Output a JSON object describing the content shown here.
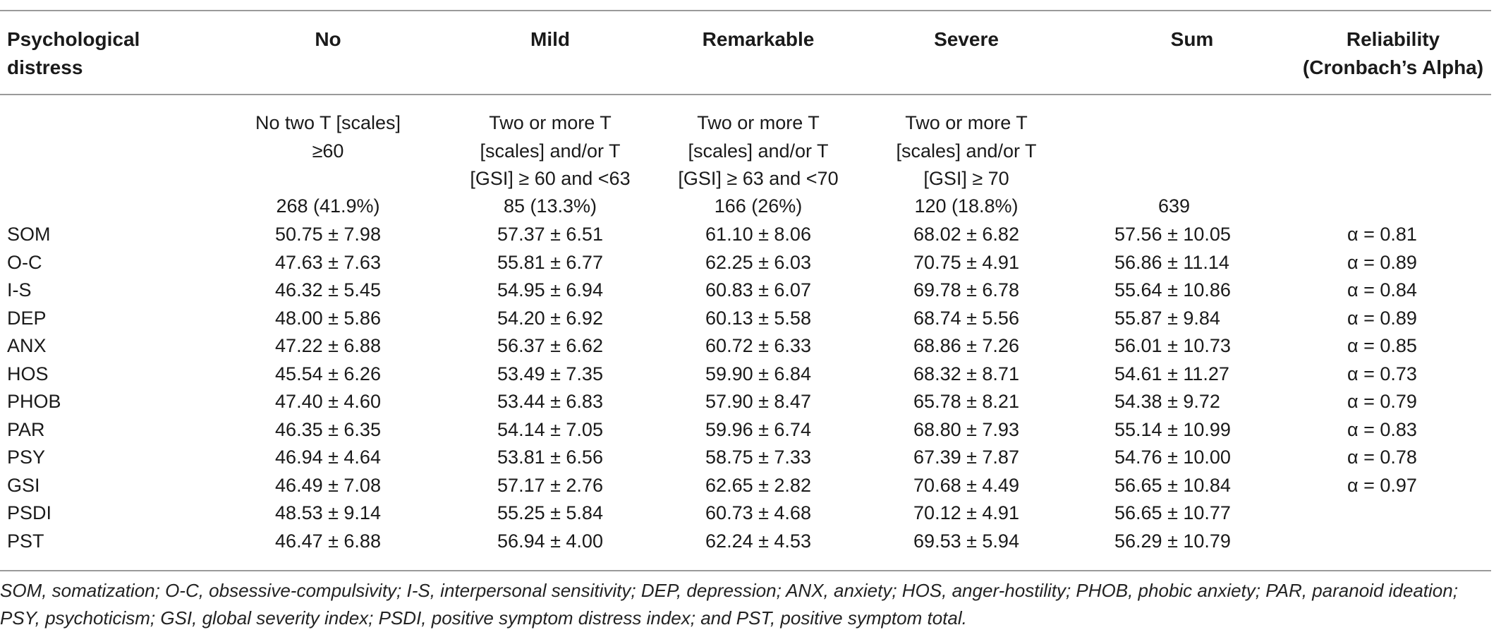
{
  "header": {
    "col0": [
      "Psychological",
      "distress"
    ],
    "col1": "No",
    "col2": "Mild",
    "col3": "Remarkable",
    "col4": "Severe",
    "col5": "Sum",
    "col6": [
      "Reliability",
      "(Cronbach’s Alpha)"
    ]
  },
  "criteria": {
    "no": [
      "No two T [scales]",
      "≥60"
    ],
    "mild": [
      "Two or more T",
      "[scales] and/or T",
      "[GSI] ≥ 60 and <63"
    ],
    "remarkable": [
      "Two or more T",
      "[scales] and/or T",
      "[GSI] ≥ 63 and <70"
    ],
    "severe": [
      "Two or more T",
      "[scales] and/or T",
      "[GSI] ≥ 70"
    ]
  },
  "counts": {
    "no": "268 (41.9%)",
    "mild": "85 (13.3%)",
    "remarkable": "166 (26%)",
    "severe": "120 (18.8%)",
    "sum": "639"
  },
  "rows": [
    {
      "label": "SOM",
      "no": "50.75 ± 7.98",
      "mild": "57.37 ± 6.51",
      "remarkable": "61.10 ± 8.06",
      "severe": "68.02 ± 6.82",
      "sum": "57.56 ± 10.05",
      "alpha": "α = 0.81"
    },
    {
      "label": "O-C",
      "no": "47.63 ± 7.63",
      "mild": "55.81 ± 6.77",
      "remarkable": "62.25 ± 6.03",
      "severe": "70.75 ± 4.91",
      "sum": "56.86 ± 11.14",
      "alpha": "α = 0.89"
    },
    {
      "label": "I-S",
      "no": "46.32 ± 5.45",
      "mild": "54.95 ± 6.94",
      "remarkable": "60.83 ± 6.07",
      "severe": "69.78 ± 6.78",
      "sum": "55.64 ± 10.86",
      "alpha": "α = 0.84"
    },
    {
      "label": "DEP",
      "no": "48.00 ± 5.86",
      "mild": "54.20 ± 6.92",
      "remarkable": "60.13 ± 5.58",
      "severe": "68.74 ± 5.56",
      "sum": "55.87 ± 9.84",
      "alpha": "α = 0.89"
    },
    {
      "label": "ANX",
      "no": "47.22 ± 6.88",
      "mild": "56.37 ± 6.62",
      "remarkable": "60.72 ± 6.33",
      "severe": "68.86 ± 7.26",
      "sum": "56.01 ± 10.73",
      "alpha": "α = 0.85"
    },
    {
      "label": "HOS",
      "no": "45.54 ± 6.26",
      "mild": "53.49 ± 7.35",
      "remarkable": "59.90 ± 6.84",
      "severe": "68.32 ± 8.71",
      "sum": "54.61 ± 11.27",
      "alpha": "α = 0.73"
    },
    {
      "label": "PHOB",
      "no": "47.40 ± 4.60",
      "mild": "53.44 ± 6.83",
      "remarkable": "57.90 ± 8.47",
      "severe": "65.78 ± 8.21",
      "sum": "54.38 ± 9.72",
      "alpha": "α = 0.79"
    },
    {
      "label": "PAR",
      "no": "46.35 ± 6.35",
      "mild": "54.14 ± 7.05",
      "remarkable": "59.96 ± 6.74",
      "severe": "68.80 ± 7.93",
      "sum": "55.14 ± 10.99",
      "alpha": "α = 0.83"
    },
    {
      "label": "PSY",
      "no": "46.94 ± 4.64",
      "mild": "53.81 ± 6.56",
      "remarkable": "58.75 ± 7.33",
      "severe": "67.39 ± 7.87",
      "sum": "54.76 ± 10.00",
      "alpha": "α = 0.78"
    },
    {
      "label": "GSI",
      "no": "46.49 ± 7.08",
      "mild": "57.17 ± 2.76",
      "remarkable": "62.65 ± 2.82",
      "severe": "70.68 ± 4.49",
      "sum": "56.65 ± 10.84",
      "alpha": "α = 0.97"
    },
    {
      "label": "PSDI",
      "no": "48.53 ± 9.14",
      "mild": "55.25 ± 5.84",
      "remarkable": "60.73 ± 4.68",
      "severe": "70.12 ± 4.91",
      "sum": "56.65 ± 10.77",
      "alpha": ""
    },
    {
      "label": "PST",
      "no": "46.47 ± 6.88",
      "mild": "56.94 ± 4.00",
      "remarkable": "62.24 ± 4.53",
      "severe": "69.53 ± 5.94",
      "sum": "56.29 ± 10.79",
      "alpha": ""
    }
  ],
  "footnote": [
    "SOM, somatization; O-C, obsessive-compulsivity; I-S, interpersonal sensitivity; DEP, depression; ANX, anxiety; HOS, anger-hostility; PHOB, phobic anxiety; PAR, paranoid ideation;",
    "PSY, psychoticism; GSI, global severity index; PSDI, positive symptom distress index; and PST, positive symptom total."
  ]
}
